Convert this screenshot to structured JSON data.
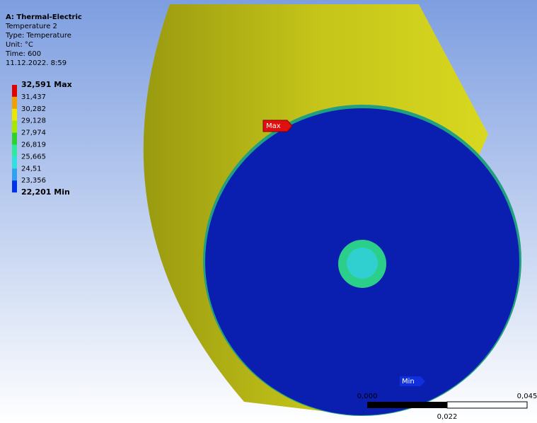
{
  "header": {
    "title": "A: Thermal-Electric",
    "lines": [
      "Temperature 2",
      "Type: Temperature",
      "Unit: °C",
      "Time: 600",
      "11.12.2022. 8:59"
    ]
  },
  "legend": {
    "labels": [
      "32,591 Max",
      "31,437",
      "30,282",
      "29,128",
      "27,974",
      "26,819",
      "25,665",
      "24,51",
      "23,356",
      "22,201 Min"
    ],
    "colors": [
      "#e00000",
      "#f0a000",
      "#e8e800",
      "#a8e800",
      "#30d030",
      "#30e8a0",
      "#30e0e0",
      "#30a0f0",
      "#0030e8"
    ]
  },
  "probes": {
    "max": "Max",
    "min": "Min"
  },
  "scale_bar": {
    "left": "0,000",
    "right": "0,045",
    "middle": "0,022"
  }
}
